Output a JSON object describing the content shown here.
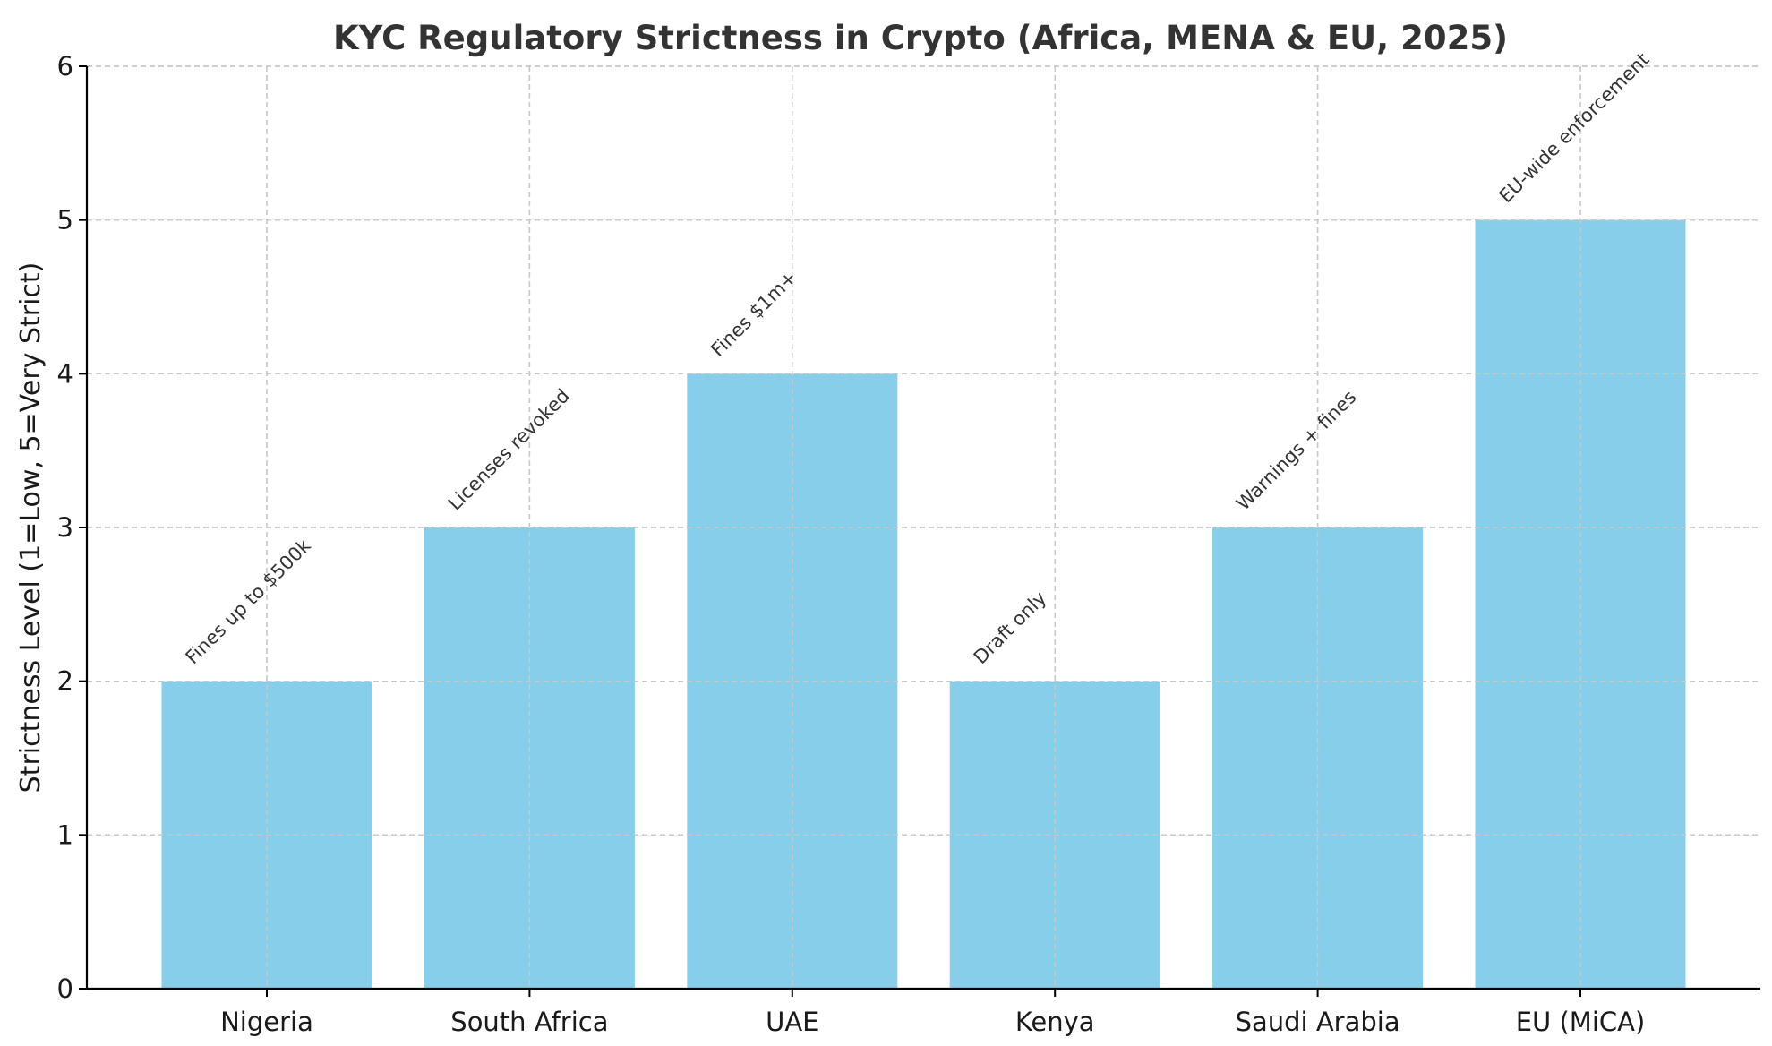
{
  "chart_data": {
    "type": "bar",
    "title": "KYC Regulatory Strictness in Crypto (Africa, MENA & EU, 2025)",
    "xlabel": "",
    "ylabel": "Strictness Level (1=Low, 5=Very Strict)",
    "categories": [
      "Nigeria",
      "South Africa",
      "UAE",
      "Kenya",
      "Saudi Arabia",
      "EU (MiCA)"
    ],
    "values": [
      2,
      3,
      4,
      2,
      3,
      5
    ],
    "annotations": [
      "Fines up to $500k",
      "Licenses revoked",
      "Fines $1m+",
      "Draft only",
      "Warnings + fines",
      "EU-wide enforcement"
    ],
    "ylim": [
      0,
      6
    ],
    "yticks": [
      "0",
      "1",
      "2",
      "3",
      "4",
      "5",
      "6"
    ],
    "grid": true,
    "bar_color": "#87ceeb"
  }
}
